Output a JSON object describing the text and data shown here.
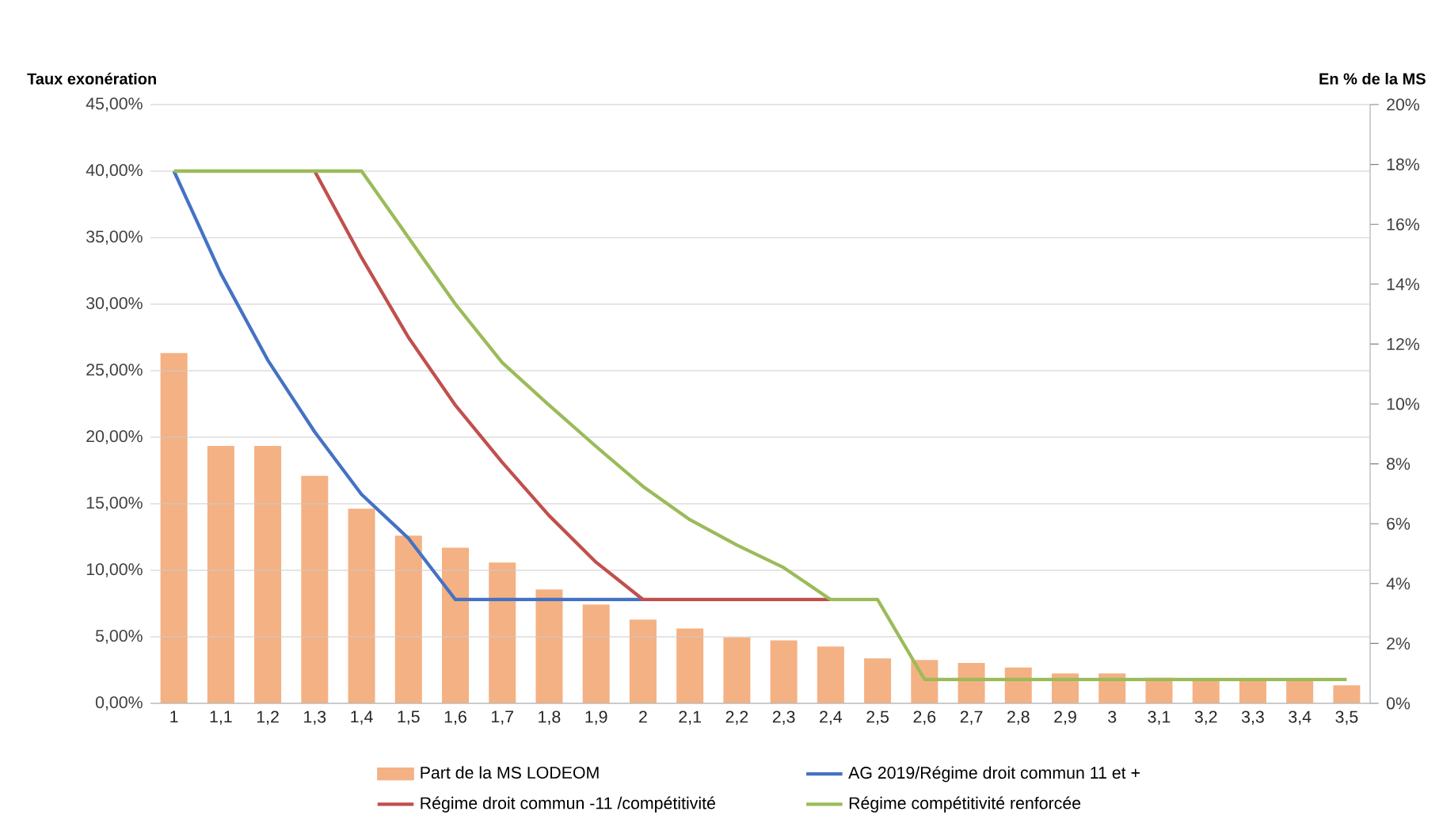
{
  "chart_data": {
    "type": "bar",
    "ylabel": "Taux exonération",
    "y2label": "En % de la MS",
    "categories": [
      "1",
      "1,1",
      "1,2",
      "1,3",
      "1,4",
      "1,5",
      "1,6",
      "1,7",
      "1,8",
      "1,9",
      "2",
      "2,1",
      "2,2",
      "2,3",
      "2,4",
      "2,5",
      "2,6",
      "2,7",
      "2,8",
      "2,9",
      "3",
      "3,1",
      "3,2",
      "3,3",
      "3,4",
      "3,5"
    ],
    "series": [
      {
        "name": "Part de la MS LODEOM",
        "axis": "y2",
        "color": "#f4b183",
        "values": [
          11.7,
          8.6,
          8.6,
          7.6,
          6.5,
          5.6,
          5.2,
          4.7,
          3.8,
          3.3,
          2.8,
          2.5,
          2.2,
          2.1,
          1.9,
          1.5,
          1.45,
          1.35,
          1.2,
          1.0,
          1.0,
          0.85,
          0.8,
          0.8,
          0.8,
          0.6
        ]
      },
      {
        "name": "AG 2019/Régime droit commun 11 et +",
        "type": "line",
        "color": "#4472c4",
        "values": [
          40,
          32.3,
          25.8,
          20.4,
          15.7,
          12.4,
          7.8,
          7.8,
          7.8,
          7.8,
          7.8,
          null,
          null,
          null,
          null,
          null,
          null,
          null,
          null,
          null,
          null,
          null,
          null,
          null,
          null,
          null
        ]
      },
      {
        "name": "Régime droit commun -11 /compétitivité",
        "type": "line",
        "color": "#c0504d",
        "values": [
          null,
          null,
          null,
          40,
          33.5,
          27.5,
          22.4,
          18.1,
          14.1,
          10.6,
          7.8,
          7.8,
          7.8,
          7.8,
          7.8,
          null,
          null,
          null,
          null,
          null,
          null,
          null,
          null,
          null,
          null,
          null
        ]
      },
      {
        "name": "Régime compétitivité renforcée",
        "type": "line",
        "color": "#9bbb59",
        "values": [
          40,
          40,
          40,
          40,
          40,
          35,
          30,
          25.6,
          22.4,
          19.3,
          16.3,
          13.8,
          11.9,
          10.2,
          7.8,
          7.8,
          1.8,
          1.8,
          1.8,
          1.8,
          1.8,
          1.8,
          1.8,
          1.8,
          1.8,
          1.8
        ]
      }
    ],
    "ylim": [
      0,
      45
    ],
    "yticks": [
      {
        "value": 0,
        "label": "0,00%"
      },
      {
        "value": 5,
        "label": "5,00%"
      },
      {
        "value": 10,
        "label": "10,00%"
      },
      {
        "value": 15,
        "label": "15,00%"
      },
      {
        "value": 20,
        "label": "20,00%"
      },
      {
        "value": 25,
        "label": "25,00%"
      },
      {
        "value": 30,
        "label": "30,00%"
      },
      {
        "value": 35,
        "label": "35,00%"
      },
      {
        "value": 40,
        "label": "40,00%"
      },
      {
        "value": 45,
        "label": "45,00%"
      }
    ],
    "y2lim": [
      0,
      20
    ],
    "y2ticks": [
      {
        "value": 0,
        "label": "0%"
      },
      {
        "value": 2,
        "label": "2%"
      },
      {
        "value": 4,
        "label": "4%"
      },
      {
        "value": 6,
        "label": "6%"
      },
      {
        "value": 8,
        "label": "8%"
      },
      {
        "value": 10,
        "label": "10%"
      },
      {
        "value": 12,
        "label": "12%"
      },
      {
        "value": 14,
        "label": "14%"
      },
      {
        "value": 16,
        "label": "16%"
      },
      {
        "value": 18,
        "label": "18%"
      },
      {
        "value": 20,
        "label": "20%"
      }
    ],
    "grid": "y",
    "legend": "bottom"
  }
}
